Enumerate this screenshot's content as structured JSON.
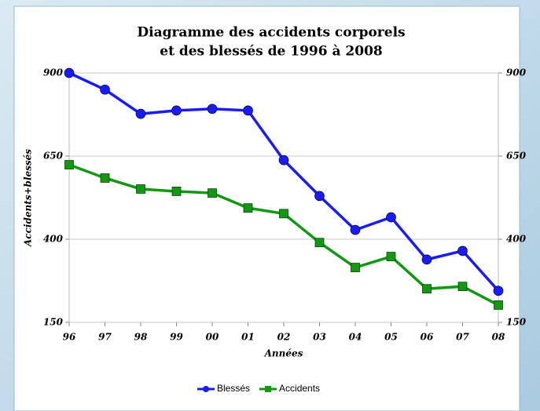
{
  "chart_data": {
    "type": "line",
    "title": "Diagramme des accidents corporels",
    "subtitle": "et des blessés de 1996 à 2008",
    "x_label": "Années",
    "y_label": "Accidents+blessés",
    "categories": [
      "96",
      "97",
      "98",
      "99",
      "00",
      "01",
      "02",
      "03",
      "04",
      "05",
      "06",
      "07",
      "08"
    ],
    "series": [
      {
        "name": "Blessés",
        "color": "#1a1aff",
        "values": [
          900,
          850,
          777,
          787,
          792,
          787,
          638,
          530,
          428,
          466,
          339,
          365,
          245
        ]
      },
      {
        "name": "Accidents",
        "color": "#119911",
        "values": [
          624,
          584,
          551,
          544,
          539,
          494,
          477,
          390,
          315,
          348,
          251,
          258,
          202
        ]
      }
    ],
    "ylim": [
      150,
      900
    ],
    "yticks": [
      150,
      400,
      650,
      900
    ],
    "grid": true,
    "legend": "bottom"
  }
}
